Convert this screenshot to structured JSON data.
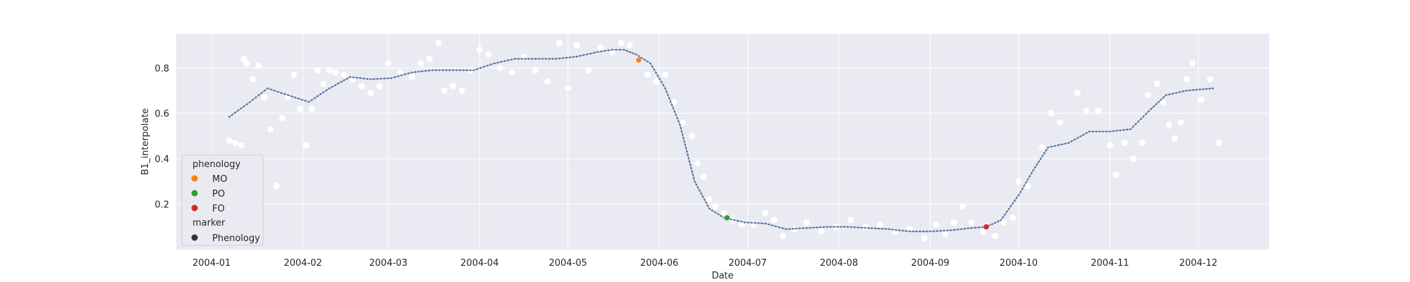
{
  "chart_data": {
    "type": "line",
    "xlabel": "Date",
    "ylabel": "B1_interpolate",
    "xlim": [
      "2003-12-20",
      "2004-12-25"
    ],
    "ylim": [
      0.0,
      0.95
    ],
    "x_ticks": [
      "2004-01",
      "2004-02",
      "2004-03",
      "2004-04",
      "2004-05",
      "2004-06",
      "2004-07",
      "2004-08",
      "2004-09",
      "2004-10",
      "2004-11",
      "2004-12"
    ],
    "y_ticks": [
      0.2,
      0.4,
      0.6,
      0.8
    ],
    "y_tick_labels": [
      "0.2",
      "0.4",
      "0.6",
      "0.8"
    ],
    "grid": true,
    "legend_placement": "lower-left",
    "colors": {
      "background": "#eaeaf2",
      "grid": "#ffffff",
      "scatter": "#ffffff",
      "line": "#7f7f7f",
      "line_marker": "#4c72b0",
      "MO": "#ff7f0e",
      "PO": "#2ca02c",
      "FO": "#d62728",
      "phenology_marker": "#333333"
    },
    "series": [
      {
        "kind": "line",
        "x": [
          "2004-01-07",
          "2004-01-13",
          "2004-01-20",
          "2004-01-27",
          "2004-02-03",
          "2004-02-10",
          "2004-02-17",
          "2004-02-24",
          "2004-03-02",
          "2004-03-09",
          "2004-03-16",
          "2004-03-23",
          "2004-03-30",
          "2004-04-06",
          "2004-04-13",
          "2004-04-20",
          "2004-04-27",
          "2004-05-04",
          "2004-05-11",
          "2004-05-16",
          "2004-05-20",
          "2004-05-24",
          "2004-05-29",
          "2004-06-03",
          "2004-06-08",
          "2004-06-13",
          "2004-06-18",
          "2004-06-23",
          "2004-06-30",
          "2004-07-07",
          "2004-07-14",
          "2004-07-21",
          "2004-07-28",
          "2004-08-04",
          "2004-08-11",
          "2004-08-18",
          "2004-08-25",
          "2004-09-01",
          "2004-09-08",
          "2004-09-15",
          "2004-09-20",
          "2004-09-25",
          "2004-10-01",
          "2004-10-06",
          "2004-10-11",
          "2004-10-18",
          "2004-10-25",
          "2004-11-01",
          "2004-11-08",
          "2004-11-15",
          "2004-11-20",
          "2004-11-27",
          "2004-12-06"
        ],
        "values": [
          0.585,
          0.64,
          0.71,
          0.68,
          0.65,
          0.71,
          0.76,
          0.75,
          0.755,
          0.78,
          0.79,
          0.79,
          0.79,
          0.82,
          0.84,
          0.84,
          0.84,
          0.85,
          0.87,
          0.88,
          0.88,
          0.86,
          0.82,
          0.71,
          0.55,
          0.3,
          0.18,
          0.14,
          0.12,
          0.115,
          0.09,
          0.095,
          0.1,
          0.1,
          0.095,
          0.09,
          0.08,
          0.08,
          0.085,
          0.095,
          0.1,
          0.13,
          0.24,
          0.35,
          0.45,
          0.47,
          0.52,
          0.52,
          0.53,
          0.62,
          0.68,
          0.7,
          0.71
        ]
      },
      {
        "kind": "scatter",
        "x": [
          "2004-01-07",
          "2004-01-09",
          "2004-01-11",
          "2004-01-12",
          "2004-01-13",
          "2004-01-15",
          "2004-01-17",
          "2004-01-19",
          "2004-01-21",
          "2004-01-23",
          "2004-01-25",
          "2004-01-27",
          "2004-01-29",
          "2004-01-31",
          "2004-02-02",
          "2004-02-04",
          "2004-02-06",
          "2004-02-08",
          "2004-02-10",
          "2004-02-12",
          "2004-02-15",
          "2004-02-18",
          "2004-02-21",
          "2004-02-24",
          "2004-02-27",
          "2004-03-01",
          "2004-03-05",
          "2004-03-09",
          "2004-03-12",
          "2004-03-15",
          "2004-03-18",
          "2004-03-20",
          "2004-03-23",
          "2004-03-26",
          "2004-03-29",
          "2004-04-01",
          "2004-04-04",
          "2004-04-08",
          "2004-04-12",
          "2004-04-16",
          "2004-04-20",
          "2004-04-24",
          "2004-04-28",
          "2004-05-01",
          "2004-05-04",
          "2004-05-08",
          "2004-05-12",
          "2004-05-16",
          "2004-05-19",
          "2004-05-22",
          "2004-05-25",
          "2004-05-28",
          "2004-05-31",
          "2004-06-03",
          "2004-06-06",
          "2004-06-09",
          "2004-06-12",
          "2004-06-14",
          "2004-06-16",
          "2004-06-18",
          "2004-06-20",
          "2004-06-23",
          "2004-06-26",
          "2004-06-29",
          "2004-07-03",
          "2004-07-07",
          "2004-07-10",
          "2004-07-13",
          "2004-07-17",
          "2004-07-21",
          "2004-07-26",
          "2004-07-31",
          "2004-08-05",
          "2004-08-10",
          "2004-08-15",
          "2004-08-20",
          "2004-08-25",
          "2004-08-30",
          "2004-09-03",
          "2004-09-06",
          "2004-09-09",
          "2004-09-12",
          "2004-09-15",
          "2004-09-19",
          "2004-09-23",
          "2004-09-26",
          "2004-09-29",
          "2004-10-01",
          "2004-10-04",
          "2004-10-09",
          "2004-10-12",
          "2004-10-15",
          "2004-10-21",
          "2004-10-24",
          "2004-10-28",
          "2004-11-01",
          "2004-11-03",
          "2004-11-06",
          "2004-11-09",
          "2004-11-12",
          "2004-11-14",
          "2004-11-17",
          "2004-11-19",
          "2004-11-21",
          "2004-11-23",
          "2004-11-25",
          "2004-11-27",
          "2004-11-29",
          "2004-12-02",
          "2004-12-05",
          "2004-12-08"
        ],
        "values": [
          0.48,
          0.47,
          0.46,
          0.84,
          0.82,
          0.75,
          0.81,
          0.67,
          0.53,
          0.28,
          0.58,
          0.67,
          0.77,
          0.62,
          0.46,
          0.62,
          0.79,
          0.73,
          0.79,
          0.78,
          0.77,
          0.75,
          0.72,
          0.69,
          0.72,
          0.82,
          0.78,
          0.76,
          0.82,
          0.84,
          0.91,
          0.7,
          0.72,
          0.7,
          0.79,
          0.88,
          0.86,
          0.8,
          0.78,
          0.85,
          0.79,
          0.74,
          0.91,
          0.71,
          0.9,
          0.79,
          0.89,
          0.87,
          0.91,
          0.9,
          0.84,
          0.77,
          0.74,
          0.77,
          0.65,
          0.56,
          0.5,
          0.38,
          0.32,
          0.22,
          0.19,
          0.16,
          0.13,
          0.11,
          0.11,
          0.16,
          0.13,
          0.06,
          0.09,
          0.12,
          0.08,
          0.1,
          0.13,
          0.1,
          0.11,
          0.08,
          0.09,
          0.05,
          0.11,
          0.07,
          0.12,
          0.19,
          0.12,
          0.08,
          0.06,
          0.12,
          0.14,
          0.3,
          0.28,
          0.45,
          0.6,
          0.56,
          0.69,
          0.61,
          0.61,
          0.46,
          0.33,
          0.47,
          0.4,
          0.47,
          0.68,
          0.73,
          0.65,
          0.55,
          0.49,
          0.56,
          0.75,
          0.82,
          0.66,
          0.75,
          0.47
        ]
      },
      {
        "kind": "phenology",
        "points": [
          {
            "label": "MO",
            "x": "2004-05-25",
            "value": 0.835
          },
          {
            "label": "PO",
            "x": "2004-06-24",
            "value": 0.14
          },
          {
            "label": "FO",
            "x": "2004-09-20",
            "value": 0.1
          }
        ]
      }
    ],
    "legend": {
      "title1": "phenology",
      "items": [
        {
          "label": "MO",
          "color": "#ff7f0e"
        },
        {
          "label": "PO",
          "color": "#2ca02c"
        },
        {
          "label": "FO",
          "color": "#d62728"
        }
      ],
      "title2": "marker",
      "marker_items": [
        {
          "label": "Phenology",
          "color": "#333333"
        }
      ]
    }
  }
}
